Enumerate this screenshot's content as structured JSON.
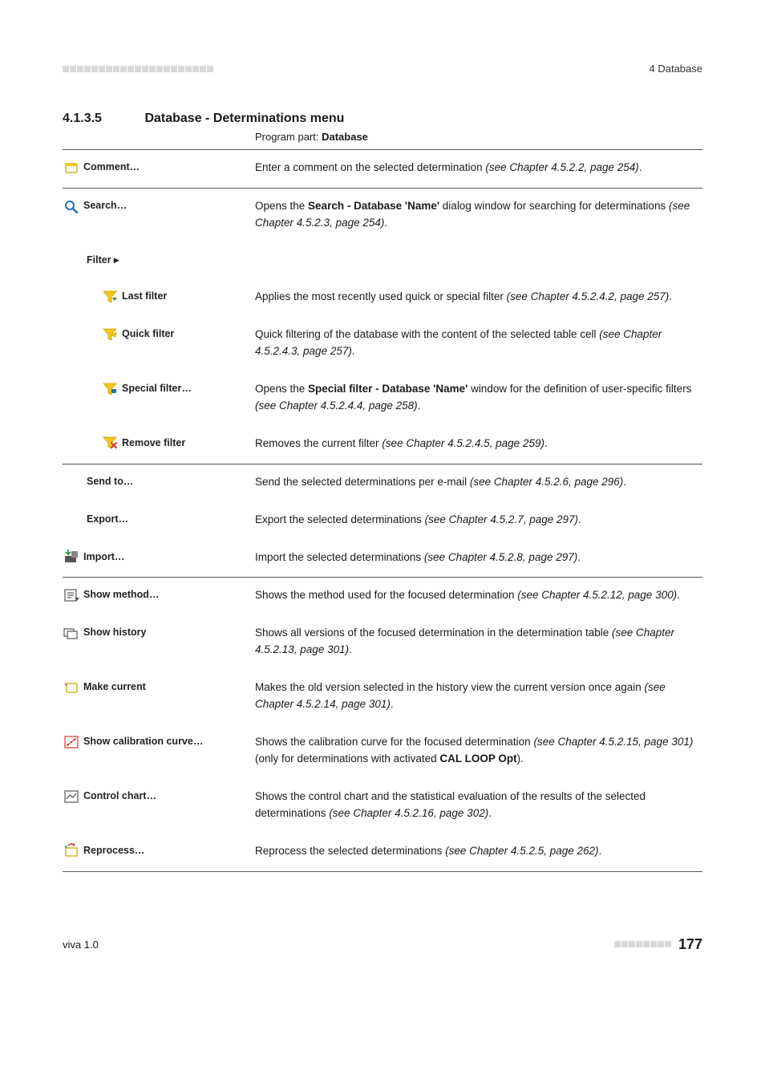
{
  "header": {
    "chapter_label": "4 Database"
  },
  "section": {
    "number": "4.1.3.5",
    "title": "Database - Determinations menu",
    "program_part_label": "Program part: ",
    "program_part_value": "Database"
  },
  "rows": [
    {
      "icon": "comment",
      "label": "Comment…",
      "indent": 0,
      "border": true,
      "desc": "Enter a comment on the selected determination <em>(see Chapter 4.5.2.2, page 254)</em>."
    },
    {
      "icon": "search",
      "label": "Search…",
      "indent": 0,
      "border": true,
      "desc": "Opens the <strong>Search - Database 'Name'</strong> dialog window for searching for determinations <em>(see Chapter 4.5.2.3, page 254)</em>."
    },
    {
      "icon": "",
      "label": "Filter ▸",
      "indent": 1,
      "border": false,
      "desc": ""
    },
    {
      "icon": "last-filter",
      "label": "Last filter",
      "indent": 2,
      "border": false,
      "desc": "Applies the most recently used quick or special filter <em>(see Chapter 4.5.2.4.2, page 257)</em>."
    },
    {
      "icon": "quick-filter",
      "label": "Quick filter",
      "indent": 2,
      "border": false,
      "desc": "Quick filtering of the database with the content of the selected table cell <em>(see Chapter 4.5.2.4.3, page 257)</em>."
    },
    {
      "icon": "special-filter",
      "label": "Special filter…",
      "indent": 2,
      "border": false,
      "desc": "Opens the <strong>Special filter - Database 'Name'</strong> window for the definition of user-specific filters <em>(see Chapter 4.5.2.4.4, page 258)</em>."
    },
    {
      "icon": "remove-filter",
      "label": "Remove filter",
      "indent": 2,
      "border": false,
      "desc": "Removes the current filter <em>(see Chapter 4.5.2.4.5, page 259)</em>."
    },
    {
      "icon": "",
      "label": "Send to…",
      "indent": 1,
      "border": true,
      "desc": "Send the selected determinations per e-mail <em>(see Chapter 4.5.2.6, page 296)</em>."
    },
    {
      "icon": "",
      "label": "Export…",
      "indent": 1,
      "border": false,
      "desc": "Export the selected determinations <em>(see Chapter 4.5.2.7, page 297)</em>."
    },
    {
      "icon": "import",
      "label": "Import…",
      "indent": 0,
      "border": false,
      "desc": "Import the selected determinations <em>(see Chapter 4.5.2.8, page 297)</em>."
    },
    {
      "icon": "show-method",
      "label": "Show method…",
      "indent": 0,
      "border": true,
      "desc": "Shows the method used for the focused determination <em>(see Chapter 4.5.2.12, page 300)</em>."
    },
    {
      "icon": "show-history",
      "label": "Show history",
      "indent": 0,
      "border": false,
      "desc": "Shows all versions of the focused determination in the determination table <em>(see Chapter 4.5.2.13, page 301)</em>."
    },
    {
      "icon": "make-current",
      "label": "Make current",
      "indent": 0,
      "border": false,
      "desc": "Makes the old version selected in the history view the current version once again <em>(see Chapter 4.5.2.14, page 301)</em>."
    },
    {
      "icon": "calibration",
      "label": "Show calibration curve…",
      "indent": 0,
      "border": false,
      "desc": "Shows the calibration curve for the focused determination <em>(see Chapter 4.5.2.15, page 301)</em> (only for determinations with activated <strong>CAL LOOP Opt</strong>)."
    },
    {
      "icon": "control-chart",
      "label": "Control chart…",
      "indent": 0,
      "border": false,
      "desc": "Shows the control chart and the statistical evaluation of the results of the selected determinations <em>(see Chapter 4.5.2.16, page 302)</em>."
    },
    {
      "icon": "reprocess",
      "label": "Reprocess…",
      "indent": 0,
      "border": false,
      "desc": "Reprocess the selected determinations <em>(see Chapter 4.5.2.5, page 262)</em>."
    }
  ],
  "footer": {
    "version": "viva 1.0",
    "page": "177"
  },
  "colors": {
    "yellow": "#f5c518",
    "blue": "#1e6fb8",
    "red": "#d33a2c",
    "green": "#2e8b3d",
    "orange": "#e07b1f",
    "gray": "#888",
    "darkgray": "#555"
  }
}
